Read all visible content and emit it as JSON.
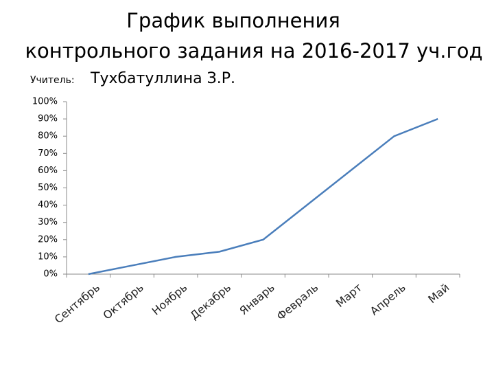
{
  "chart_data": {
    "type": "line",
    "title": [
      "График выполнения",
      "контрольного задания на 2016-2017 уч.год"
    ],
    "teacher_label": "Учитель:",
    "teacher_name": "Тухбатуллина З.Р.",
    "categories": [
      "Сентябрь",
      "Октябрь",
      "Ноябрь",
      "Декабрь",
      "Январь",
      "Февраль",
      "Март",
      "Апрель",
      "Май"
    ],
    "values": [
      0,
      5,
      10,
      13,
      20,
      40,
      60,
      80,
      90
    ],
    "color": "#4a7ebb",
    "ylim": [
      0,
      100
    ],
    "yticks": [
      {
        "value": 0,
        "label": "0%"
      },
      {
        "value": 10,
        "label": "10%"
      },
      {
        "value": 20,
        "label": "20%"
      },
      {
        "value": 30,
        "label": "30%"
      },
      {
        "value": 40,
        "label": "40%"
      },
      {
        "value": 50,
        "label": "50%"
      },
      {
        "value": 60,
        "label": "60%"
      },
      {
        "value": 70,
        "label": "70%"
      },
      {
        "value": 80,
        "label": "80%"
      },
      {
        "value": 90,
        "label": "90%"
      },
      {
        "value": 100,
        "label": "100%"
      }
    ],
    "grid": false
  }
}
